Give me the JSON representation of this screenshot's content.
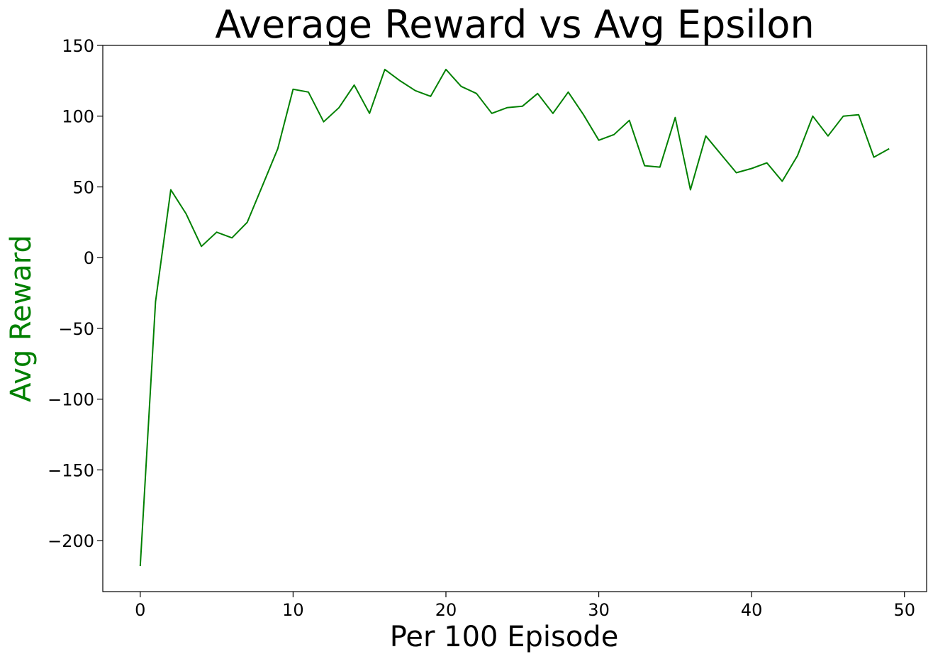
{
  "colors": {
    "line": "#008000",
    "ylabel": "#008000",
    "axis": "#000000",
    "background": "#ffffff"
  },
  "chart_data": {
    "type": "line",
    "title": "Average Reward vs Avg Epsilon",
    "xlabel": "Per 100 Episode",
    "ylabel": "Avg Reward",
    "xlim": [
      -2.45,
      51.45
    ],
    "ylim": [
      -236,
      150
    ],
    "xticks": [
      0,
      10,
      20,
      30,
      40,
      50
    ],
    "yticks": [
      -200,
      -150,
      -100,
      -50,
      0,
      50,
      100,
      150
    ],
    "xtick_labels": [
      "0",
      "10",
      "20",
      "30",
      "40",
      "50"
    ],
    "ytick_labels": [
      "−200",
      "−150",
      "−100",
      "−50",
      "0",
      "50",
      "100",
      "150"
    ],
    "grid": false,
    "legend": "none",
    "series": [
      {
        "x": [
          0,
          1,
          2,
          3,
          4,
          5,
          6,
          7,
          8,
          9,
          10,
          11,
          12,
          13,
          14,
          15,
          16,
          17,
          18,
          19,
          20,
          21,
          22,
          23,
          24,
          25,
          26,
          27,
          28,
          29,
          30,
          31,
          32,
          33,
          34,
          35,
          36,
          37,
          38,
          39,
          40,
          41,
          42,
          43,
          44,
          45,
          46,
          47,
          48,
          49
        ],
        "values": [
          -218,
          -31,
          48,
          31,
          8,
          18,
          14,
          25,
          51,
          77,
          119,
          117,
          96,
          106,
          122,
          102,
          133,
          125,
          118,
          114,
          133,
          121,
          116,
          102,
          106,
          107,
          116,
          102,
          117,
          101,
          83,
          87,
          97,
          65,
          64,
          99,
          48,
          86,
          73,
          60,
          63,
          67,
          54,
          72,
          100,
          86,
          100,
          101,
          71,
          77
        ]
      }
    ]
  }
}
